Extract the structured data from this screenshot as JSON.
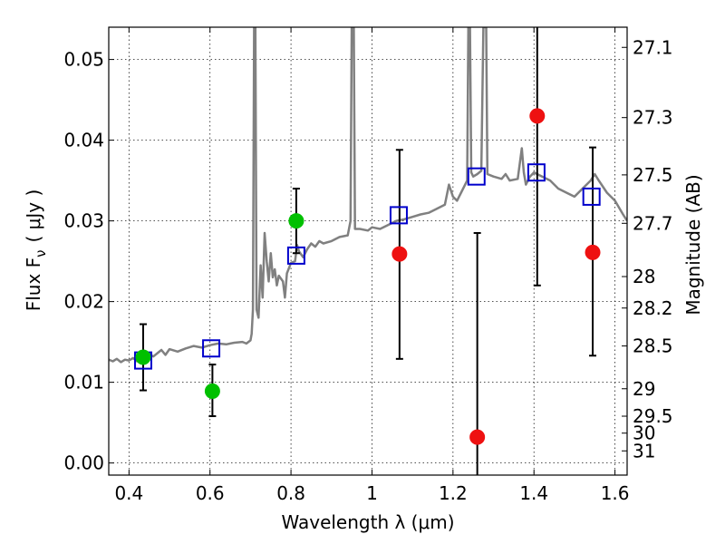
{
  "chart_data": {
    "type": "scatter",
    "xlabel": "Wavelength  λ (μm)",
    "ylabel_left": "Flux  F",
    "ylabel_left_sub": "ν",
    "ylabel_left_units": "( μJy )",
    "ylabel_right": "Magnitude (AB)",
    "xlim": [
      0.35,
      1.63
    ],
    "ylim": [
      -0.0015,
      0.054
    ],
    "grid": true,
    "x_ticks": [
      {
        "value": 0.4,
        "label": "0.4"
      },
      {
        "value": 0.6,
        "label": "0.6"
      },
      {
        "value": 0.8,
        "label": "0.8"
      },
      {
        "value": 1.0,
        "label": "1"
      },
      {
        "value": 1.2,
        "label": "1.2"
      },
      {
        "value": 1.4,
        "label": "1.4"
      },
      {
        "value": 1.6,
        "label": "1.6"
      }
    ],
    "y_ticks": [
      {
        "value": 0.0,
        "label": "0.00"
      },
      {
        "value": 0.01,
        "label": "0.01"
      },
      {
        "value": 0.02,
        "label": "0.02"
      },
      {
        "value": 0.03,
        "label": "0.03"
      },
      {
        "value": 0.04,
        "label": "0.04"
      },
      {
        "value": 0.05,
        "label": "0.05"
      }
    ],
    "right_ticks": [
      {
        "flux": 0.0515,
        "label": "27.1"
      },
      {
        "flux": 0.0428,
        "label": "27.3"
      },
      {
        "flux": 0.0357,
        "label": "27.5"
      },
      {
        "flux": 0.0297,
        "label": "27.7"
      },
      {
        "flux": 0.0231,
        "label": "28"
      },
      {
        "flux": 0.0192,
        "label": "28.2"
      },
      {
        "flux": 0.0145,
        "label": "28.5"
      },
      {
        "flux": 0.0092,
        "label": "29"
      },
      {
        "flux": 0.0058,
        "label": "29.5"
      },
      {
        "flux": 0.0037,
        "label": "30"
      },
      {
        "flux": 0.0015,
        "label": "31"
      }
    ],
    "spectrum": {
      "color": "#808080",
      "points": [
        [
          0.35,
          0.0128
        ],
        [
          0.36,
          0.0126
        ],
        [
          0.37,
          0.0129
        ],
        [
          0.38,
          0.0125
        ],
        [
          0.39,
          0.0128
        ],
        [
          0.4,
          0.0127
        ],
        [
          0.41,
          0.013
        ],
        [
          0.42,
          0.0126
        ],
        [
          0.43,
          0.0131
        ],
        [
          0.44,
          0.0133
        ],
        [
          0.45,
          0.0135
        ],
        [
          0.46,
          0.0132
        ],
        [
          0.47,
          0.0136
        ],
        [
          0.48,
          0.014
        ],
        [
          0.49,
          0.0134
        ],
        [
          0.5,
          0.0141
        ],
        [
          0.52,
          0.0138
        ],
        [
          0.54,
          0.0142
        ],
        [
          0.56,
          0.0145
        ],
        [
          0.58,
          0.0143
        ],
        [
          0.6,
          0.0146
        ],
        [
          0.62,
          0.0148
        ],
        [
          0.64,
          0.0147
        ],
        [
          0.66,
          0.0149
        ],
        [
          0.68,
          0.015
        ],
        [
          0.69,
          0.0148
        ],
        [
          0.7,
          0.0152
        ],
        [
          0.703,
          0.016
        ],
        [
          0.706,
          0.019
        ],
        [
          0.709,
          0.054
        ],
        [
          0.712,
          0.054
        ],
        [
          0.715,
          0.019
        ],
        [
          0.72,
          0.018
        ],
        [
          0.725,
          0.0245
        ],
        [
          0.73,
          0.0205
        ],
        [
          0.735,
          0.0285
        ],
        [
          0.74,
          0.025
        ],
        [
          0.745,
          0.0225
        ],
        [
          0.75,
          0.026
        ],
        [
          0.755,
          0.023
        ],
        [
          0.76,
          0.024
        ],
        [
          0.765,
          0.022
        ],
        [
          0.77,
          0.0232
        ],
        [
          0.78,
          0.0225
        ],
        [
          0.785,
          0.0205
        ],
        [
          0.79,
          0.0235
        ],
        [
          0.8,
          0.0248
        ],
        [
          0.81,
          0.025
        ],
        [
          0.815,
          0.027
        ],
        [
          0.82,
          0.0262
        ],
        [
          0.83,
          0.0255
        ],
        [
          0.84,
          0.0265
        ],
        [
          0.85,
          0.0272
        ],
        [
          0.86,
          0.0268
        ],
        [
          0.87,
          0.0275
        ],
        [
          0.88,
          0.0272
        ],
        [
          0.9,
          0.0275
        ],
        [
          0.92,
          0.028
        ],
        [
          0.94,
          0.0282
        ],
        [
          0.947,
          0.03
        ],
        [
          0.95,
          0.054
        ],
        [
          0.955,
          0.054
        ],
        [
          0.958,
          0.029
        ],
        [
          0.97,
          0.029
        ],
        [
          0.99,
          0.0288
        ],
        [
          1.0,
          0.0292
        ],
        [
          1.02,
          0.029
        ],
        [
          1.04,
          0.0295
        ],
        [
          1.06,
          0.03
        ],
        [
          1.08,
          0.0302
        ],
        [
          1.1,
          0.0305
        ],
        [
          1.12,
          0.0308
        ],
        [
          1.14,
          0.031
        ],
        [
          1.16,
          0.0315
        ],
        [
          1.18,
          0.032
        ],
        [
          1.19,
          0.0345
        ],
        [
          1.2,
          0.033
        ],
        [
          1.21,
          0.0325
        ],
        [
          1.22,
          0.0335
        ],
        [
          1.235,
          0.035
        ],
        [
          1.238,
          0.054
        ],
        [
          1.242,
          0.054
        ],
        [
          1.245,
          0.036
        ],
        [
          1.25,
          0.0355
        ],
        [
          1.26,
          0.0358
        ],
        [
          1.27,
          0.0362
        ],
        [
          1.275,
          0.054
        ],
        [
          1.282,
          0.054
        ],
        [
          1.285,
          0.0358
        ],
        [
          1.3,
          0.0355
        ],
        [
          1.32,
          0.0352
        ],
        [
          1.33,
          0.0358
        ],
        [
          1.34,
          0.035
        ],
        [
          1.36,
          0.0352
        ],
        [
          1.37,
          0.039
        ],
        [
          1.375,
          0.036
        ],
        [
          1.38,
          0.0345
        ],
        [
          1.39,
          0.0355
        ],
        [
          1.4,
          0.036
        ],
        [
          1.42,
          0.0355
        ],
        [
          1.44,
          0.035
        ],
        [
          1.46,
          0.034
        ],
        [
          1.48,
          0.0335
        ],
        [
          1.5,
          0.033
        ],
        [
          1.52,
          0.034
        ],
        [
          1.54,
          0.035
        ],
        [
          1.55,
          0.0358
        ],
        [
          1.56,
          0.035
        ],
        [
          1.58,
          0.0335
        ],
        [
          1.6,
          0.0325
        ],
        [
          1.62,
          0.0308
        ],
        [
          1.63,
          0.03
        ]
      ]
    },
    "series": [
      {
        "marker": "open-square",
        "color": "#0000cc",
        "points": [
          {
            "x": 0.435,
            "y": 0.0127
          },
          {
            "x": 0.603,
            "y": 0.0142
          },
          {
            "x": 0.813,
            "y": 0.0257
          },
          {
            "x": 1.066,
            "y": 0.0307
          },
          {
            "x": 1.258,
            "y": 0.0355
          },
          {
            "x": 1.406,
            "y": 0.036
          },
          {
            "x": 1.542,
            "y": 0.033
          }
        ]
      },
      {
        "marker": "filled-circle",
        "color": "#00c000",
        "points": [
          {
            "x": 0.435,
            "y": 0.0131,
            "err_low": 0.0041,
            "err_high": 0.0041
          },
          {
            "x": 0.606,
            "y": 0.0089,
            "err_low": 0.0031,
            "err_high": 0.0033
          },
          {
            "x": 0.813,
            "y": 0.03,
            "err_low": 0.004,
            "err_high": 0.004
          }
        ]
      },
      {
        "marker": "filled-circle",
        "color": "#ee1111",
        "points": [
          {
            "x": 1.068,
            "y": 0.0259,
            "err_low": 0.013,
            "err_high": 0.0129
          },
          {
            "x": 1.26,
            "y": 0.0032,
            "err_low": 0.006,
            "err_high": 0.0253
          },
          {
            "x": 1.408,
            "y": 0.043,
            "err_low": 0.021,
            "err_high": 0.013
          },
          {
            "x": 1.545,
            "y": 0.0261,
            "err_low": 0.0128,
            "err_high": 0.013
          }
        ]
      }
    ]
  }
}
